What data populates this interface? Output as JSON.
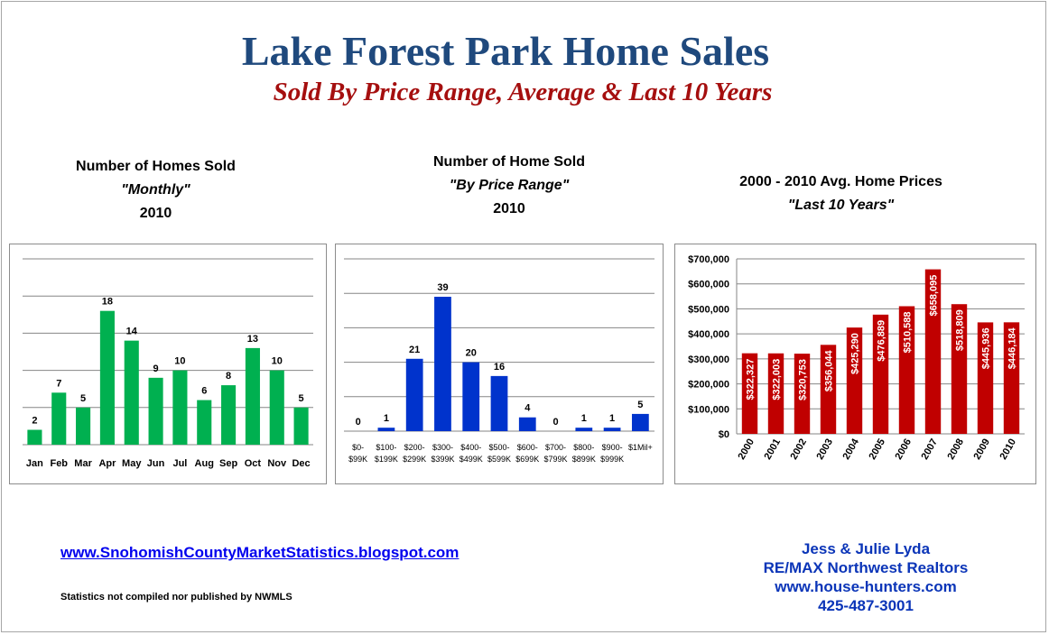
{
  "header": {
    "title": "Lake Forest Park Home Sales",
    "subtitle": "Sold By Price Range, Average & Last 10 Years"
  },
  "charts": [
    {
      "line1": "Number of Homes Sold",
      "line2": "\"Monthly\"",
      "line3": "2010"
    },
    {
      "line1": "Number of Home Sold",
      "line2": "\"By Price Range\"",
      "line3": "2010"
    },
    {
      "line1": "2000 - 2010 Avg. Home Prices",
      "line2": "\"Last 10 Years\"",
      "line3": ""
    }
  ],
  "footer": {
    "blog_link": "www.SnohomishCountyMarketStatistics.blogspot.com",
    "disclaimer": "Statistics not compiled nor published by NWMLS",
    "contact_name": "Jess & Julie Lyda",
    "contact_company": "RE/MAX Northwest Realtors",
    "contact_site": "www.house-hunters.com",
    "contact_phone": "425-487-3001"
  },
  "colors": {
    "monthly": "#00b050",
    "price_range": "#0033cc",
    "avg_price": "#c00000",
    "title": "#1f497d",
    "subtitle": "#a50f0f"
  },
  "chart_data": [
    {
      "type": "bar",
      "categories": [
        "Jan",
        "Feb",
        "Mar",
        "Apr",
        "May",
        "Jun",
        "Jul",
        "Aug",
        "Sep",
        "Oct",
        "Nov",
        "Dec"
      ],
      "values": [
        2,
        7,
        5,
        18,
        14,
        9,
        10,
        6,
        8,
        13,
        10,
        5
      ],
      "ylim": [
        0,
        25
      ],
      "grid": true,
      "data_labels": "above"
    },
    {
      "type": "bar",
      "categories": [
        [
          "$0-",
          "$99K"
        ],
        [
          "$100-",
          "$199K"
        ],
        [
          "$200-",
          "$299K"
        ],
        [
          "$300-",
          "$399K"
        ],
        [
          "$400-",
          "$499K"
        ],
        [
          "$500-",
          "$599K"
        ],
        [
          "$600-",
          "$699K"
        ],
        [
          "$700-",
          "$799K"
        ],
        [
          "$800-",
          "$899K"
        ],
        [
          "$900-",
          "$999K"
        ],
        [
          "$1Mil+",
          ""
        ]
      ],
      "values": [
        0,
        1,
        21,
        39,
        20,
        16,
        4,
        0,
        1,
        1,
        5
      ],
      "ylim": [
        0,
        50
      ],
      "grid": true,
      "data_labels": "above"
    },
    {
      "type": "bar",
      "categories": [
        "2000",
        "2001",
        "2002",
        "2003",
        "2004",
        "2005",
        "2006",
        "2007",
        "2008",
        "2009",
        "2010"
      ],
      "values": [
        322327,
        322003,
        320753,
        356044,
        425290,
        476889,
        510588,
        658095,
        518809,
        445936,
        446184
      ],
      "value_labels": [
        "$322,327",
        "$322,003",
        "$320,753",
        "$356,044",
        "$425,290",
        "$476,889",
        "$510,588",
        "$658,095",
        "$518,809",
        "$445,936",
        "$446,184"
      ],
      "yticks": [
        "$0",
        "$100,000",
        "$200,000",
        "$300,000",
        "$400,000",
        "$500,000",
        "$600,000",
        "$700,000"
      ],
      "ylim": [
        0,
        700000
      ],
      "grid": true,
      "data_labels": "inside-vertical"
    }
  ]
}
